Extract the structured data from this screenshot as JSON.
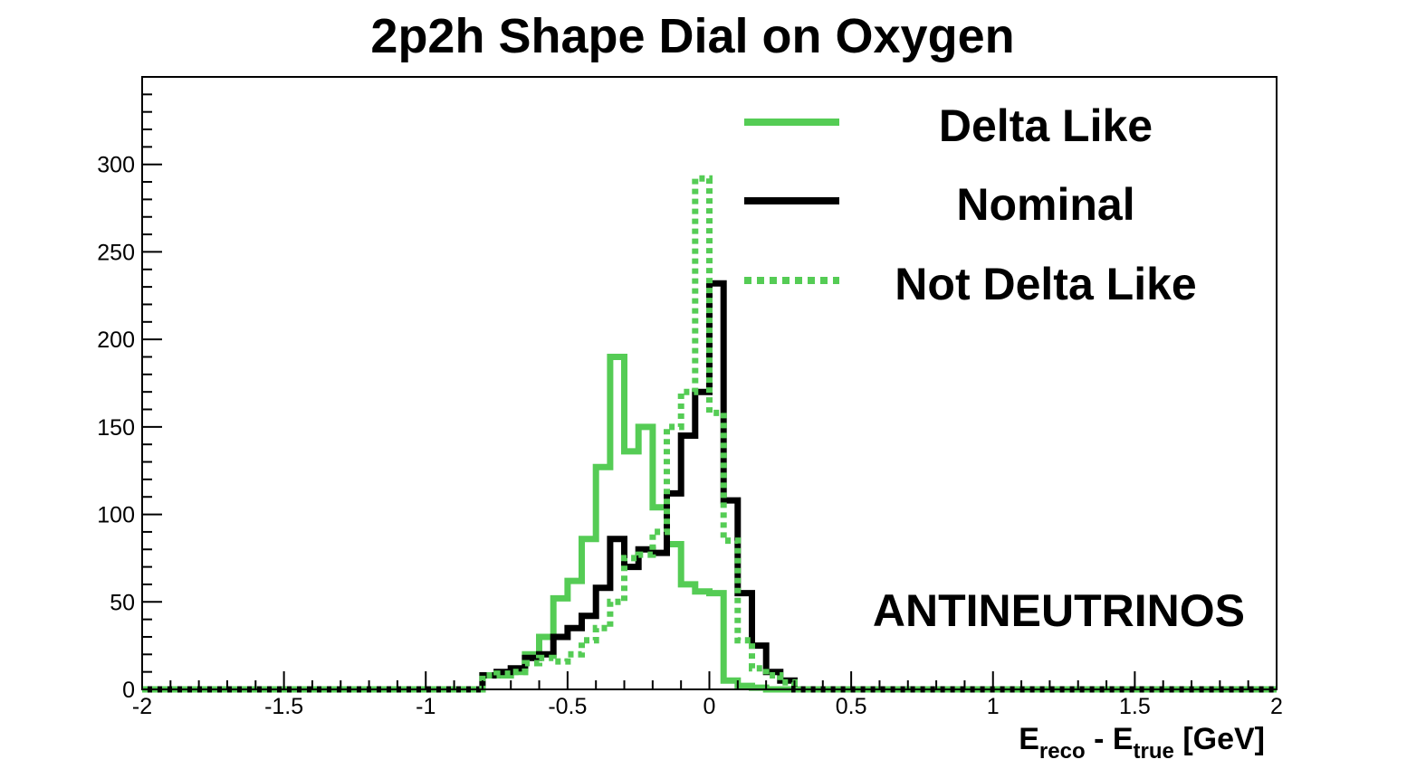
{
  "chart_data": {
    "type": "line",
    "title": "2p2h Shape Dial on Oxygen",
    "xlabel": {
      "main": "E",
      "sub1": "reco",
      "mid": " - E",
      "sub2": "true",
      "tail": " [GeV]"
    },
    "ylabel": "",
    "xlim": [
      -2,
      2
    ],
    "ylim": [
      0,
      350
    ],
    "x_ticks": [
      "-2",
      "-1.5",
      "-1",
      "-0.5",
      "0",
      "0.5",
      "1",
      "1.5",
      "2"
    ],
    "y_ticks": [
      "0",
      "50",
      "100",
      "150",
      "200",
      "250",
      "300"
    ],
    "annotation": "ANTINEUTRINOS",
    "legend_position": "top-right",
    "grid": false,
    "bin_edges": [
      -0.8,
      -0.75,
      -0.7,
      -0.65,
      -0.6,
      -0.55,
      -0.5,
      -0.45,
      -0.4,
      -0.35,
      -0.3,
      -0.25,
      -0.2,
      -0.15,
      -0.1,
      -0.05,
      0.0,
      0.05,
      0.1,
      0.15,
      0.2,
      0.25,
      0.3
    ],
    "series": [
      {
        "name": "Delta Like",
        "color": "#55cc55",
        "style": "solid",
        "values": [
          8,
          8,
          10,
          20,
          30,
          52,
          62,
          86,
          127,
          190,
          136,
          150,
          104,
          83,
          60,
          56,
          55,
          5,
          2,
          1,
          0,
          0
        ]
      },
      {
        "name": "Nominal",
        "color": "#000000",
        "style": "solid",
        "values": [
          8,
          10,
          12,
          18,
          20,
          30,
          35,
          42,
          58,
          86,
          70,
          80,
          78,
          112,
          145,
          170,
          232,
          108,
          55,
          25,
          10,
          5
        ]
      },
      {
        "name": "Not Delta Like",
        "color": "#55cc55",
        "style": "dotted",
        "values": [
          8,
          9,
          10,
          15,
          18,
          16,
          20,
          28,
          35,
          50,
          75,
          77,
          90,
          150,
          170,
          292,
          158,
          85,
          28,
          12,
          8,
          4
        ]
      }
    ]
  }
}
